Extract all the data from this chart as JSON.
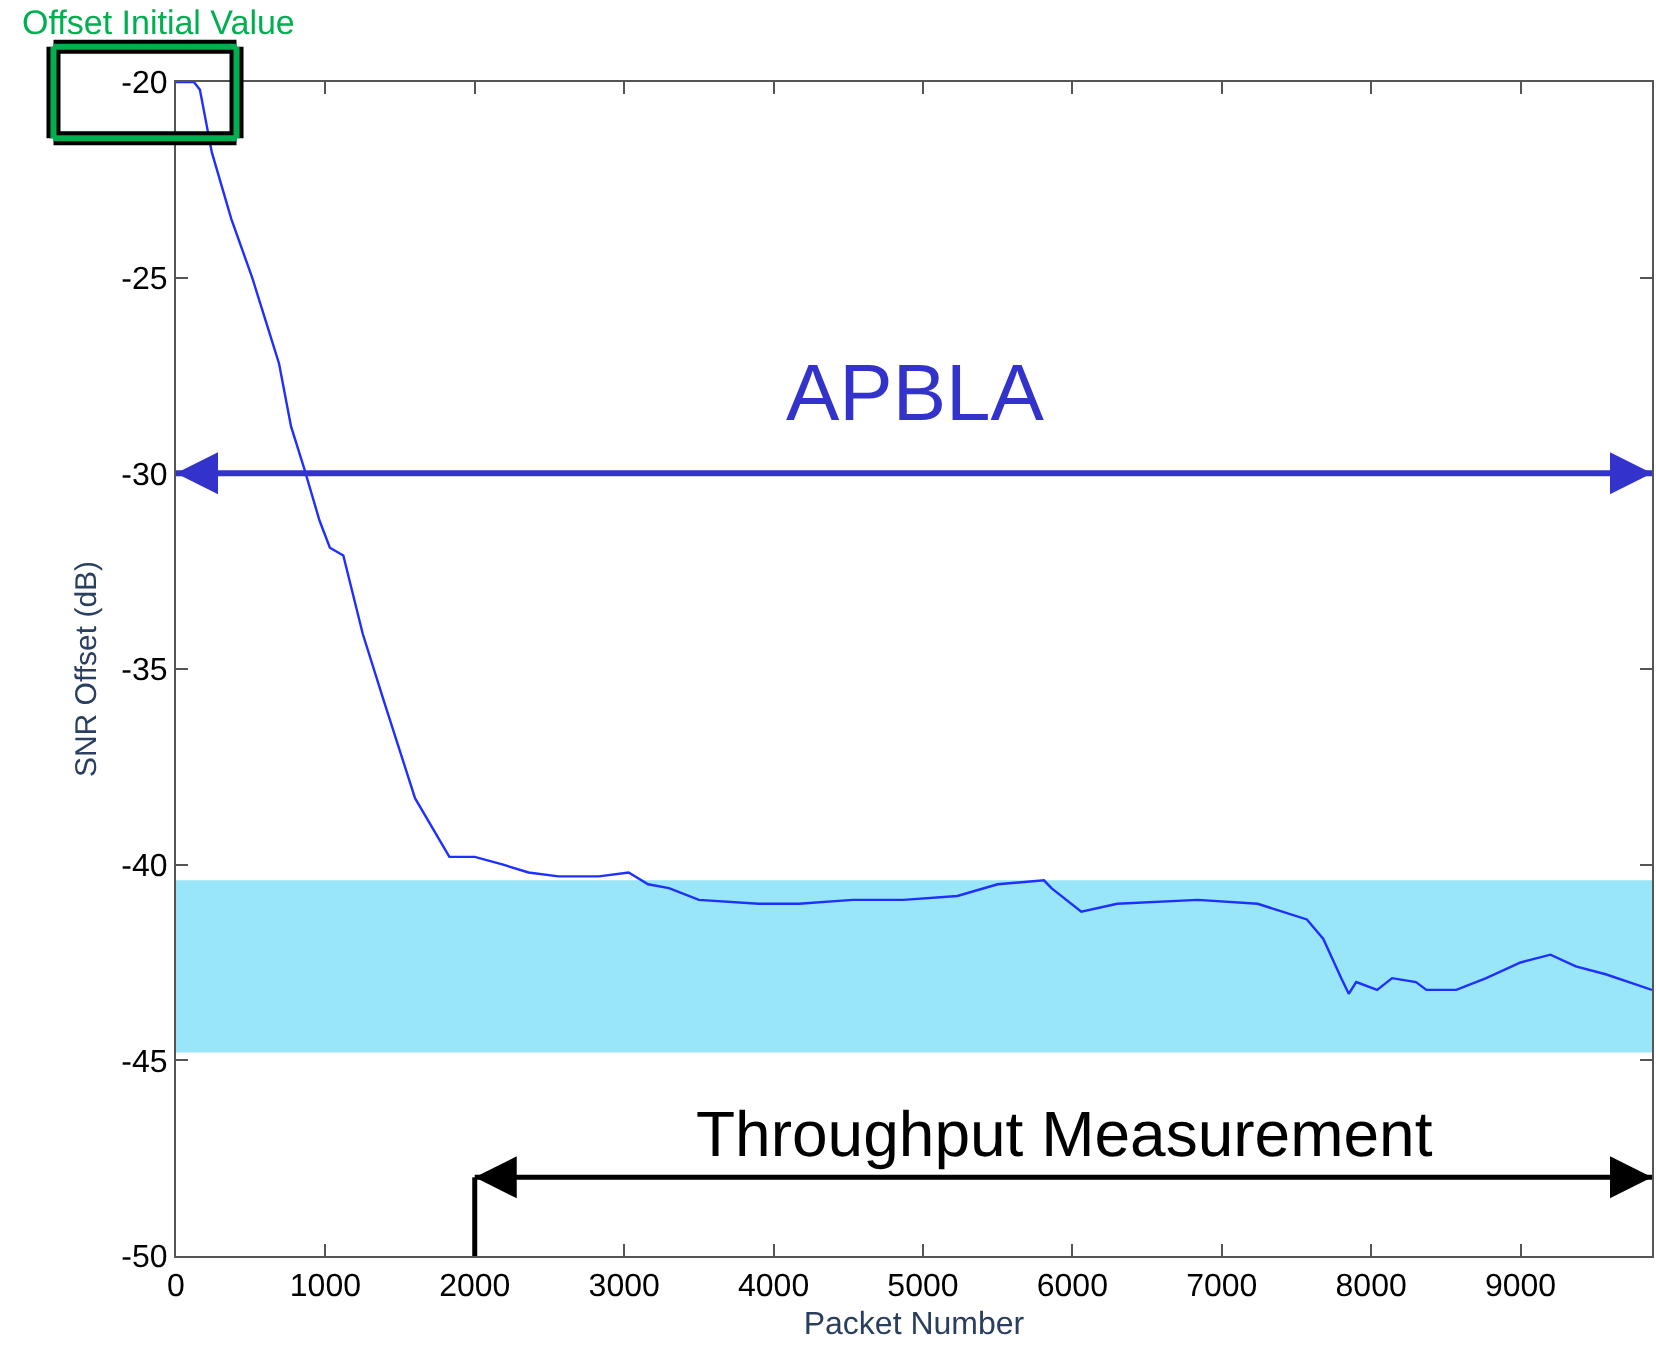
{
  "chart_data": {
    "type": "line",
    "xlabel": "Packet Number",
    "ylabel": "SNR Offset (dB)",
    "x": [
      0,
      120,
      160,
      200,
      240,
      370,
      510,
      600,
      690,
      770,
      860,
      960,
      1030,
      1120,
      1250,
      1390,
      1600,
      1830,
      2000,
      2190,
      2360,
      2560,
      2830,
      3030,
      3160,
      3300,
      3500,
      3900,
      4170,
      4530,
      4870,
      5230,
      5500,
      5810,
      5860,
      6060,
      6300,
      6840,
      7240,
      7570,
      7680,
      7800,
      7850,
      7900,
      8040,
      8140,
      8300,
      8370,
      8570,
      8770,
      9000,
      9200,
      9370,
      9570,
      9880
    ],
    "series": [
      {
        "color": "#1f2fff",
        "values": [
          -20,
          -20,
          -20.2,
          -21,
          -21.8,
          -23.5,
          -25,
          -26.1,
          -27.2,
          -28.8,
          -29.9,
          -31.2,
          -31.9,
          -32.1,
          -34.1,
          -35.8,
          -38.3,
          -39.8,
          -39.8,
          -40.0,
          -40.2,
          -40.3,
          -40.3,
          -40.2,
          -40.5,
          -40.6,
          -40.9,
          -41.0,
          -41.0,
          -40.9,
          -40.9,
          -40.8,
          -40.5,
          -40.4,
          -40.6,
          -41.2,
          -41.0,
          -40.9,
          -41.0,
          -41.4,
          -41.9,
          -42.9,
          -43.3,
          -43.0,
          -43.2,
          -42.9,
          -43.0,
          -43.2,
          -43.2,
          -42.9,
          -42.5,
          -42.3,
          -42.6,
          -42.8,
          -43.2
        ]
      }
    ],
    "xlim": [
      0,
      9880
    ],
    "xticks": [
      0,
      1000,
      2000,
      3000,
      4000,
      5000,
      6000,
      7000,
      8000,
      9000
    ],
    "ylim": [
      -50,
      -20
    ],
    "yticks": [
      -50,
      -45,
      -40,
      -35,
      -30,
      -25,
      -20
    ],
    "grid": false,
    "marker": "none",
    "line_style": "solid",
    "bands": [
      {
        "axis": "y",
        "from": -44.8,
        "to": -40.4,
        "color": "#99e6f8"
      }
    ],
    "ref_lines": [
      {
        "axis": "y",
        "value": -30,
        "label": "APBLA",
        "color": "#3333cc"
      }
    ],
    "annotations": [
      "Offset Initial Value",
      "Throughput Measurement"
    ]
  }
}
